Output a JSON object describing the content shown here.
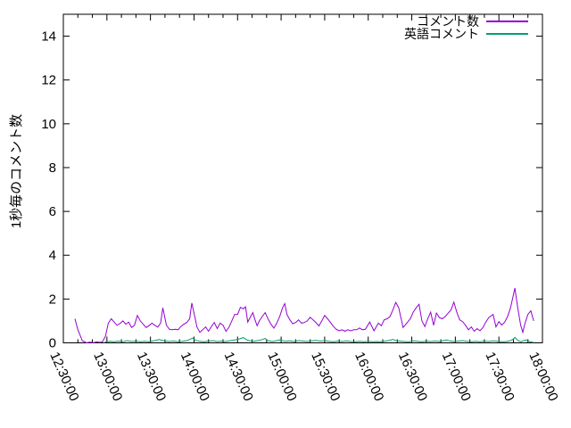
{
  "chart_data": {
    "type": "line",
    "title": "",
    "xlabel": "",
    "ylabel": "1秒毎のコメント数",
    "legend_position": "top-right-inside",
    "grid": false,
    "y_axis": {
      "lim": [
        0,
        15
      ],
      "tick_values": [
        0,
        2,
        4,
        6,
        8,
        10,
        12,
        14
      ]
    },
    "x_axis": {
      "domain_minutes": [
        0,
        330
      ],
      "major_tick_interval_minutes": 30,
      "minor_tick_interval_minutes": 10,
      "tick_labels": [
        "12:30:00",
        "13:00:00",
        "13:30:00",
        "14:00:00",
        "14:30:00",
        "15:00:00",
        "15:30:00",
        "16:00:00",
        "16:30:00",
        "17:00:00",
        "17:30:00",
        "18:00:00"
      ]
    },
    "series": [
      {
        "name": "コメント数",
        "color": "#9400d3",
        "points": [
          [
            8,
            1.1
          ],
          [
            10,
            0.6
          ],
          [
            13,
            0.1
          ],
          [
            16,
            0
          ],
          [
            18,
            0.03
          ],
          [
            21,
            0.01
          ],
          [
            23,
            0.05
          ],
          [
            25,
            0.02
          ],
          [
            27,
            0.05
          ],
          [
            29,
            0.3
          ],
          [
            31,
            0.9
          ],
          [
            33,
            1.1
          ],
          [
            35,
            0.95
          ],
          [
            37,
            0.8
          ],
          [
            39,
            0.88
          ],
          [
            41,
            1.0
          ],
          [
            43,
            0.85
          ],
          [
            45,
            0.95
          ],
          [
            47,
            0.7
          ],
          [
            49,
            0.8
          ],
          [
            51,
            1.25
          ],
          [
            53,
            1.0
          ],
          [
            55,
            0.85
          ],
          [
            57,
            0.7
          ],
          [
            59,
            0.78
          ],
          [
            61,
            0.9
          ],
          [
            63,
            0.8
          ],
          [
            65,
            0.72
          ],
          [
            67,
            0.9
          ],
          [
            68.5,
            1.6
          ],
          [
            71,
            0.81
          ],
          [
            73,
            0.62
          ],
          [
            75,
            0.6
          ],
          [
            77,
            0.62
          ],
          [
            79,
            0.6
          ],
          [
            81,
            0.75
          ],
          [
            83,
            0.85
          ],
          [
            85,
            0.93
          ],
          [
            87,
            1.1
          ],
          [
            88.5,
            1.82
          ],
          [
            90.5,
            1.2
          ],
          [
            92,
            0.73
          ],
          [
            94,
            0.48
          ],
          [
            96,
            0.6
          ],
          [
            98,
            0.73
          ],
          [
            100,
            0.53
          ],
          [
            102,
            0.75
          ],
          [
            104,
            0.93
          ],
          [
            106,
            0.65
          ],
          [
            108,
            0.9
          ],
          [
            110,
            0.8
          ],
          [
            112,
            0.53
          ],
          [
            114,
            0.7
          ],
          [
            116,
            1.0
          ],
          [
            118,
            1.3
          ],
          [
            120,
            1.3
          ],
          [
            122,
            1.62
          ],
          [
            124,
            1.55
          ],
          [
            125.5,
            1.65
          ],
          [
            127,
            0.95
          ],
          [
            129,
            1.2
          ],
          [
            130.5,
            1.38
          ],
          [
            132,
            1.05
          ],
          [
            133.5,
            0.78
          ],
          [
            135,
            1.0
          ],
          [
            137,
            1.2
          ],
          [
            139,
            1.38
          ],
          [
            141,
            1.1
          ],
          [
            143,
            0.85
          ],
          [
            145,
            0.67
          ],
          [
            147,
            0.9
          ],
          [
            149,
            1.2
          ],
          [
            151,
            1.6
          ],
          [
            152.5,
            1.79
          ],
          [
            154,
            1.3
          ],
          [
            156,
            1.05
          ],
          [
            158,
            0.87
          ],
          [
            160,
            0.93
          ],
          [
            162,
            1.05
          ],
          [
            164,
            0.9
          ],
          [
            166,
            0.93
          ],
          [
            168,
            1.0
          ],
          [
            170,
            1.17
          ],
          [
            172,
            1.05
          ],
          [
            174,
            0.93
          ],
          [
            176,
            0.77
          ],
          [
            178,
            1.0
          ],
          [
            180,
            1.25
          ],
          [
            182,
            1.1
          ],
          [
            184,
            0.93
          ],
          [
            186,
            0.75
          ],
          [
            188,
            0.62
          ],
          [
            190,
            0.55
          ],
          [
            192,
            0.6
          ],
          [
            194,
            0.53
          ],
          [
            196,
            0.6
          ],
          [
            198,
            0.55
          ],
          [
            200,
            0.6
          ],
          [
            202,
            0.6
          ],
          [
            204,
            0.68
          ],
          [
            206,
            0.6
          ],
          [
            208,
            0.62
          ],
          [
            211,
            0.95
          ],
          [
            214,
            0.55
          ],
          [
            217,
            0.9
          ],
          [
            219,
            0.78
          ],
          [
            221,
            1.05
          ],
          [
            223,
            1.1
          ],
          [
            225,
            1.2
          ],
          [
            227,
            1.5
          ],
          [
            229,
            1.85
          ],
          [
            231,
            1.6
          ],
          [
            234,
            0.7
          ],
          [
            236,
            0.85
          ],
          [
            239,
            1.1
          ],
          [
            241,
            1.4
          ],
          [
            243,
            1.6
          ],
          [
            245,
            1.76
          ],
          [
            247,
            1.0
          ],
          [
            249,
            0.74
          ],
          [
            251,
            1.1
          ],
          [
            253,
            1.4
          ],
          [
            255,
            0.8
          ],
          [
            257,
            1.36
          ],
          [
            259,
            1.15
          ],
          [
            261,
            1.1
          ],
          [
            263,
            1.2
          ],
          [
            265,
            1.35
          ],
          [
            267,
            1.5
          ],
          [
            269,
            1.86
          ],
          [
            271,
            1.4
          ],
          [
            273,
            1.05
          ],
          [
            275,
            0.97
          ],
          [
            277,
            0.8
          ],
          [
            279,
            0.6
          ],
          [
            281,
            0.73
          ],
          [
            283,
            0.53
          ],
          [
            285,
            0.65
          ],
          [
            287,
            0.55
          ],
          [
            289,
            0.7
          ],
          [
            291,
            0.95
          ],
          [
            293,
            1.15
          ],
          [
            296,
            1.3
          ],
          [
            298,
            0.73
          ],
          [
            300,
            0.97
          ],
          [
            302,
            0.81
          ],
          [
            304,
            0.95
          ],
          [
            306,
            1.2
          ],
          [
            308,
            1.6
          ],
          [
            310,
            2.2
          ],
          [
            311,
            2.5
          ],
          [
            313,
            1.6
          ],
          [
            315,
            0.8
          ],
          [
            316.5,
            0.48
          ],
          [
            318,
            0.9
          ],
          [
            320,
            1.3
          ],
          [
            322,
            1.46
          ],
          [
            324,
            1.0
          ]
        ]
      },
      {
        "name": "英語コメント",
        "color": "#009e73",
        "points": [
          [
            28,
            0
          ],
          [
            29,
            0.04
          ],
          [
            32,
            0.07
          ],
          [
            35,
            0.05
          ],
          [
            38,
            0.08
          ],
          [
            41,
            0.05
          ],
          [
            44,
            0.1
          ],
          [
            47,
            0.06
          ],
          [
            50,
            0.08
          ],
          [
            53,
            0.05
          ],
          [
            56,
            0.07
          ],
          [
            59,
            0.05
          ],
          [
            62,
            0.09
          ],
          [
            64,
            0.12
          ],
          [
            66,
            0.15
          ],
          [
            68,
            0.12
          ],
          [
            70,
            0.08
          ],
          [
            73,
            0.06
          ],
          [
            76,
            0.08
          ],
          [
            79,
            0.05
          ],
          [
            82,
            0.07
          ],
          [
            85,
            0.1
          ],
          [
            87,
            0.15
          ],
          [
            89,
            0.22
          ],
          [
            91,
            0.12
          ],
          [
            94,
            0.07
          ],
          [
            97,
            0.05
          ],
          [
            100,
            0.08
          ],
          [
            103,
            0.1
          ],
          [
            106,
            0.06
          ],
          [
            109,
            0.08
          ],
          [
            112,
            0.06
          ],
          [
            115,
            0.1
          ],
          [
            118,
            0.13
          ],
          [
            120,
            0.15
          ],
          [
            122,
            0.2
          ],
          [
            124,
            0.24
          ],
          [
            126,
            0.15
          ],
          [
            128,
            0.1
          ],
          [
            131,
            0.07
          ],
          [
            134,
            0.1
          ],
          [
            137,
            0.15
          ],
          [
            139,
            0.2
          ],
          [
            141,
            0.1
          ],
          [
            144,
            0.06
          ],
          [
            147,
            0.1
          ],
          [
            149,
            0.14
          ],
          [
            151,
            0.1
          ],
          [
            153,
            0.07
          ],
          [
            156,
            0.09
          ],
          [
            159,
            0.06
          ],
          [
            162,
            0.1
          ],
          [
            165,
            0.08
          ],
          [
            168,
            0.06
          ],
          [
            171,
            0.09
          ],
          [
            174,
            0.11
          ],
          [
            177,
            0.08
          ],
          [
            180,
            0.1
          ],
          [
            183,
            0.07
          ],
          [
            186,
            0.05
          ],
          [
            189,
            0.08
          ],
          [
            192,
            0.06
          ],
          [
            195,
            0.09
          ],
          [
            198,
            0.06
          ],
          [
            201,
            0.05
          ],
          [
            204,
            0.07
          ],
          [
            207,
            0.05
          ],
          [
            210,
            0.07
          ],
          [
            213,
            0.05
          ],
          [
            216,
            0.06
          ],
          [
            219,
            0.05
          ],
          [
            222,
            0.08
          ],
          [
            225,
            0.12
          ],
          [
            227,
            0.16
          ],
          [
            229,
            0.1
          ],
          [
            232,
            0.08
          ],
          [
            235,
            0.06
          ],
          [
            238,
            0.05
          ],
          [
            241,
            0.09
          ],
          [
            244,
            0.07
          ],
          [
            247,
            0.05
          ],
          [
            250,
            0.08
          ],
          [
            253,
            0.06
          ],
          [
            256,
            0.08
          ],
          [
            259,
            0.06
          ],
          [
            262,
            0.1
          ],
          [
            264,
            0.13
          ],
          [
            266,
            0.09
          ],
          [
            269,
            0.06
          ],
          [
            272,
            0.08
          ],
          [
            275,
            0.1
          ],
          [
            278,
            0.07
          ],
          [
            281,
            0.05
          ],
          [
            284,
            0.07
          ],
          [
            287,
            0.05
          ],
          [
            290,
            0.08
          ],
          [
            293,
            0.06
          ],
          [
            296,
            0.09
          ],
          [
            299,
            0.07
          ],
          [
            302,
            0.05
          ],
          [
            305,
            0.06
          ],
          [
            308,
            0.1
          ],
          [
            310,
            0.18
          ],
          [
            311,
            0.25
          ],
          [
            313,
            0.12
          ],
          [
            315,
            0.05
          ],
          [
            317,
            0.1
          ],
          [
            319,
            0.13
          ],
          [
            321,
            0.06
          ],
          [
            323,
            0.03
          ],
          [
            324,
            0.02
          ]
        ]
      }
    ]
  }
}
